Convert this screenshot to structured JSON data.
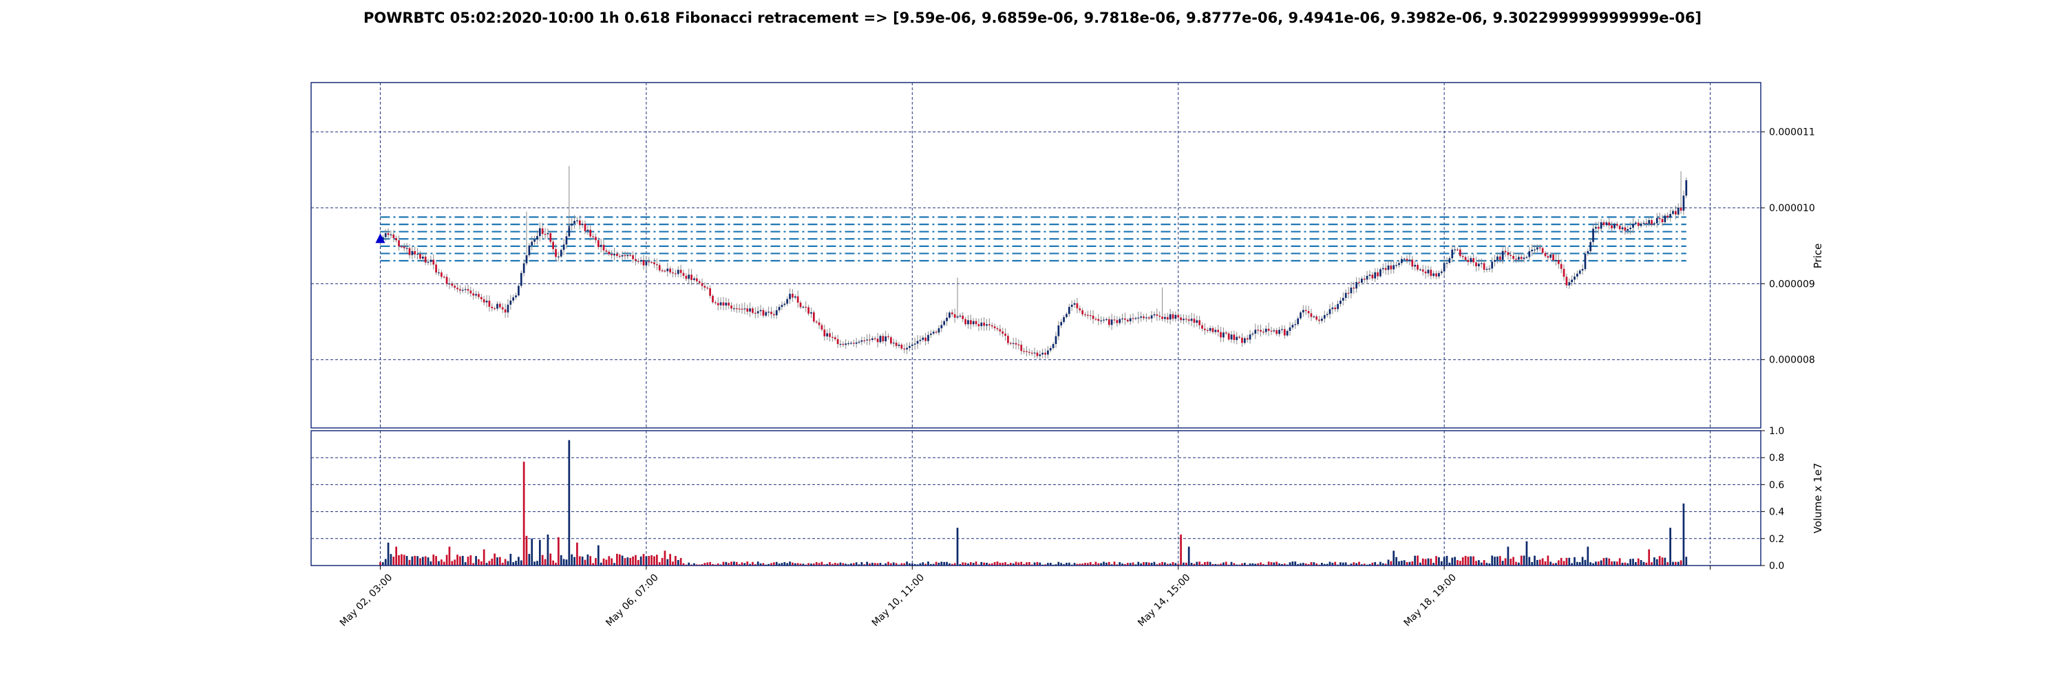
{
  "colors": {
    "up": "#0d2a6b",
    "down": "#c8102e",
    "fib": "#1f77b4",
    "grid": "#1a2f7a",
    "marker": "#0000cc"
  },
  "chart_data": {
    "type": "candlestick",
    "title": "POWRBTC 05:02:2020-10:00 1h 0.618 Fibonacci retracement => [9.59e-06, 9.6859e-06, 9.7818e-06, 9.8777e-06, 9.4941e-06, 9.3982e-06, 9.302299999999999e-06]",
    "price_axis": {
      "label": "Price",
      "ylim": [
        7.1e-06,
        1.165e-05
      ],
      "ticks": [
        8e-06,
        9e-06,
        1e-05,
        1.1e-05
      ],
      "tick_labels": [
        "0.000008",
        "0.000009",
        "0.000010",
        "0.000011"
      ],
      "position": "right"
    },
    "volume_axis": {
      "label": "Volume x 1e7",
      "ylim": [
        0,
        1.0
      ],
      "ticks": [
        0,
        0.2,
        0.4,
        0.6,
        0.8,
        1.0
      ],
      "tick_labels": [
        "0.0",
        "0.2",
        "0.4",
        "0.6",
        "0.8",
        "1.0"
      ],
      "position": "right"
    },
    "x_axis": {
      "tick_labels": [
        "May 02, 03:00",
        "May 06, 07:00",
        "May 10, 11:00",
        "May 14, 15:00",
        "May 18, 19:00"
      ],
      "tick_hours": [
        0,
        100,
        200,
        300,
        400
      ],
      "extra_grid_hours": [
        500
      ],
      "xlim_hours": [
        -26,
        519
      ]
    },
    "grid": true,
    "fibonacci_levels": [
      9.59e-06,
      9.6859e-06,
      9.7818e-06,
      9.8777e-06,
      9.4941e-06,
      9.3982e-06,
      9.302299999999999e-06
    ],
    "fib_x_range_hours": [
      0,
      491
    ],
    "start_marker": {
      "hour": 0,
      "price": 9.59e-06,
      "shape": "triangle-up"
    },
    "n_candles": 492,
    "price_anchors": [
      [
        0,
        9.62e-06
      ],
      [
        5,
        9.66e-06
      ],
      [
        12,
        9.48e-06
      ],
      [
        20,
        9.38e-06
      ],
      [
        30,
        9.28e-06
      ],
      [
        40,
        9e-06
      ],
      [
        55,
        8.85e-06
      ],
      [
        66,
        8.72e-06
      ],
      [
        75,
        8.65e-06
      ],
      [
        80,
        8.82e-06
      ],
      [
        85,
        9.2e-06
      ],
      [
        90,
        9.55e-06
      ],
      [
        95,
        9.72e-06
      ],
      [
        100,
        9.66e-06
      ],
      [
        106,
        9.32e-06
      ],
      [
        112,
        9.72e-06
      ],
      [
        118,
        9.82e-06
      ],
      [
        126,
        9.62e-06
      ],
      [
        135,
        9.38e-06
      ],
      [
        150,
        9.35e-06
      ],
      [
        160,
        9.25e-06
      ],
      [
        170,
        9.2e-06
      ],
      [
        180,
        9.12e-06
      ],
      [
        190,
        9.05e-06
      ],
      [
        200,
        8.75e-06
      ],
      [
        215,
        8.65e-06
      ],
      [
        225,
        8.62e-06
      ],
      [
        235,
        8.58e-06
      ],
      [
        245,
        8.85e-06
      ],
      [
        255,
        8.65e-06
      ],
      [
        265,
        8.32e-06
      ],
      [
        280,
        8.18e-06
      ],
      [
        300,
        8.28e-06
      ],
      [
        315,
        8.15e-06
      ],
      [
        325,
        8.28e-06
      ],
      [
        333,
        8.42e-06
      ],
      [
        338,
        8.6e-06
      ],
      [
        350,
        8.5e-06
      ],
      [
        365,
        8.42e-06
      ],
      [
        375,
        8.25e-06
      ],
      [
        385,
        8.1e-06
      ],
      [
        395,
        8.05e-06
      ],
      [
        400,
        8.15e-06
      ],
      [
        406,
        8.5e-06
      ],
      [
        413,
        8.78e-06
      ],
      [
        420,
        8.6e-06
      ],
      [
        430,
        8.48e-06
      ],
      [
        445,
        8.52e-06
      ],
      [
        460,
        8.55e-06
      ],
      [
        475,
        8.58e-06
      ],
      [
        490,
        8.45e-06
      ],
      [
        505,
        8.3e-06
      ],
      [
        515,
        8.25e-06
      ],
      [
        525,
        8.4e-06
      ],
      [
        540,
        8.35e-06
      ],
      [
        550,
        8.62e-06
      ],
      [
        560,
        8.55e-06
      ],
      [
        570,
        8.7e-06
      ],
      [
        580,
        8.95e-06
      ],
      [
        590,
        9.1e-06
      ],
      [
        600,
        9.18e-06
      ],
      [
        610,
        9.35e-06
      ],
      [
        620,
        9.2e-06
      ],
      [
        630,
        9.1e-06
      ],
      [
        640,
        9.45e-06
      ],
      [
        650,
        9.3e-06
      ],
      [
        660,
        9.2e-06
      ],
      [
        670,
        9.4e-06
      ],
      [
        680,
        9.35e-06
      ],
      [
        690,
        9.45e-06
      ],
      [
        700,
        9.35e-06
      ],
      [
        708,
        9e-06
      ],
      [
        716,
        9.15e-06
      ],
      [
        724,
        9.75e-06
      ],
      [
        732,
        9.8e-06
      ],
      [
        740,
        9.7e-06
      ],
      [
        750,
        9.78e-06
      ],
      [
        760,
        9.82e-06
      ],
      [
        765,
        9.85e-06
      ],
      [
        770,
        9.9e-06
      ],
      [
        776,
        1e-05
      ],
      [
        779,
        1.035e-05
      ]
    ],
    "volume_spikes": [
      [
        5,
        0.17,
        "up"
      ],
      [
        10,
        0.14,
        "down"
      ],
      [
        41,
        0.14,
        "down"
      ],
      [
        62,
        0.12,
        "down"
      ],
      [
        85,
        0.77,
        "down"
      ],
      [
        88,
        0.22,
        "down"
      ],
      [
        90,
        0.2,
        "up"
      ],
      [
        95,
        0.19,
        "up"
      ],
      [
        100,
        0.23,
        "up"
      ],
      [
        107,
        0.21,
        "down"
      ],
      [
        112,
        0.93,
        "up"
      ],
      [
        118,
        0.17,
        "down"
      ],
      [
        130,
        0.15,
        "up"
      ],
      [
        170,
        0.11,
        "down"
      ],
      [
        345,
        0.28,
        "up"
      ],
      [
        478,
        0.23,
        "down"
      ],
      [
        483,
        0.14,
        "up"
      ],
      [
        605,
        0.11,
        "up"
      ],
      [
        672,
        0.14,
        "up"
      ],
      [
        684,
        0.18,
        "up"
      ],
      [
        720,
        0.14,
        "up"
      ],
      [
        756,
        0.12,
        "down"
      ],
      [
        770,
        0.28,
        "up"
      ],
      [
        778,
        0.46,
        "up"
      ],
      [
        780,
        0.28,
        "down"
      ]
    ]
  }
}
